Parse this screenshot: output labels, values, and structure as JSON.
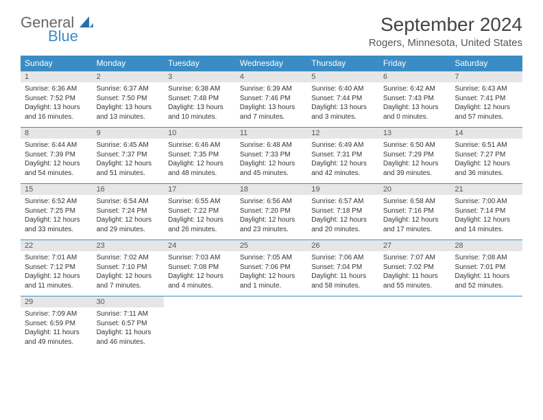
{
  "logo": {
    "text1": "General",
    "text2": "Blue"
  },
  "title": "September 2024",
  "location": "Rogers, Minnesota, United States",
  "colors": {
    "header_bg": "#3b8cc4",
    "header_text": "#ffffff",
    "daynum_bg": "#e6e6e6",
    "row_border": "#3b8cc4",
    "body_text": "#333333",
    "logo_blue": "#3b8cc4",
    "logo_gray": "#666666"
  },
  "day_headers": [
    "Sunday",
    "Monday",
    "Tuesday",
    "Wednesday",
    "Thursday",
    "Friday",
    "Saturday"
  ],
  "weeks": [
    [
      {
        "n": "1",
        "sr": "Sunrise: 6:36 AM",
        "ss": "Sunset: 7:52 PM",
        "d1": "Daylight: 13 hours",
        "d2": "and 16 minutes."
      },
      {
        "n": "2",
        "sr": "Sunrise: 6:37 AM",
        "ss": "Sunset: 7:50 PM",
        "d1": "Daylight: 13 hours",
        "d2": "and 13 minutes."
      },
      {
        "n": "3",
        "sr": "Sunrise: 6:38 AM",
        "ss": "Sunset: 7:48 PM",
        "d1": "Daylight: 13 hours",
        "d2": "and 10 minutes."
      },
      {
        "n": "4",
        "sr": "Sunrise: 6:39 AM",
        "ss": "Sunset: 7:46 PM",
        "d1": "Daylight: 13 hours",
        "d2": "and 7 minutes."
      },
      {
        "n": "5",
        "sr": "Sunrise: 6:40 AM",
        "ss": "Sunset: 7:44 PM",
        "d1": "Daylight: 13 hours",
        "d2": "and 3 minutes."
      },
      {
        "n": "6",
        "sr": "Sunrise: 6:42 AM",
        "ss": "Sunset: 7:43 PM",
        "d1": "Daylight: 13 hours",
        "d2": "and 0 minutes."
      },
      {
        "n": "7",
        "sr": "Sunrise: 6:43 AM",
        "ss": "Sunset: 7:41 PM",
        "d1": "Daylight: 12 hours",
        "d2": "and 57 minutes."
      }
    ],
    [
      {
        "n": "8",
        "sr": "Sunrise: 6:44 AM",
        "ss": "Sunset: 7:39 PM",
        "d1": "Daylight: 12 hours",
        "d2": "and 54 minutes."
      },
      {
        "n": "9",
        "sr": "Sunrise: 6:45 AM",
        "ss": "Sunset: 7:37 PM",
        "d1": "Daylight: 12 hours",
        "d2": "and 51 minutes."
      },
      {
        "n": "10",
        "sr": "Sunrise: 6:46 AM",
        "ss": "Sunset: 7:35 PM",
        "d1": "Daylight: 12 hours",
        "d2": "and 48 minutes."
      },
      {
        "n": "11",
        "sr": "Sunrise: 6:48 AM",
        "ss": "Sunset: 7:33 PM",
        "d1": "Daylight: 12 hours",
        "d2": "and 45 minutes."
      },
      {
        "n": "12",
        "sr": "Sunrise: 6:49 AM",
        "ss": "Sunset: 7:31 PM",
        "d1": "Daylight: 12 hours",
        "d2": "and 42 minutes."
      },
      {
        "n": "13",
        "sr": "Sunrise: 6:50 AM",
        "ss": "Sunset: 7:29 PM",
        "d1": "Daylight: 12 hours",
        "d2": "and 39 minutes."
      },
      {
        "n": "14",
        "sr": "Sunrise: 6:51 AM",
        "ss": "Sunset: 7:27 PM",
        "d1": "Daylight: 12 hours",
        "d2": "and 36 minutes."
      }
    ],
    [
      {
        "n": "15",
        "sr": "Sunrise: 6:52 AM",
        "ss": "Sunset: 7:25 PM",
        "d1": "Daylight: 12 hours",
        "d2": "and 33 minutes."
      },
      {
        "n": "16",
        "sr": "Sunrise: 6:54 AM",
        "ss": "Sunset: 7:24 PM",
        "d1": "Daylight: 12 hours",
        "d2": "and 29 minutes."
      },
      {
        "n": "17",
        "sr": "Sunrise: 6:55 AM",
        "ss": "Sunset: 7:22 PM",
        "d1": "Daylight: 12 hours",
        "d2": "and 26 minutes."
      },
      {
        "n": "18",
        "sr": "Sunrise: 6:56 AM",
        "ss": "Sunset: 7:20 PM",
        "d1": "Daylight: 12 hours",
        "d2": "and 23 minutes."
      },
      {
        "n": "19",
        "sr": "Sunrise: 6:57 AM",
        "ss": "Sunset: 7:18 PM",
        "d1": "Daylight: 12 hours",
        "d2": "and 20 minutes."
      },
      {
        "n": "20",
        "sr": "Sunrise: 6:58 AM",
        "ss": "Sunset: 7:16 PM",
        "d1": "Daylight: 12 hours",
        "d2": "and 17 minutes."
      },
      {
        "n": "21",
        "sr": "Sunrise: 7:00 AM",
        "ss": "Sunset: 7:14 PM",
        "d1": "Daylight: 12 hours",
        "d2": "and 14 minutes."
      }
    ],
    [
      {
        "n": "22",
        "sr": "Sunrise: 7:01 AM",
        "ss": "Sunset: 7:12 PM",
        "d1": "Daylight: 12 hours",
        "d2": "and 11 minutes."
      },
      {
        "n": "23",
        "sr": "Sunrise: 7:02 AM",
        "ss": "Sunset: 7:10 PM",
        "d1": "Daylight: 12 hours",
        "d2": "and 7 minutes."
      },
      {
        "n": "24",
        "sr": "Sunrise: 7:03 AM",
        "ss": "Sunset: 7:08 PM",
        "d1": "Daylight: 12 hours",
        "d2": "and 4 minutes."
      },
      {
        "n": "25",
        "sr": "Sunrise: 7:05 AM",
        "ss": "Sunset: 7:06 PM",
        "d1": "Daylight: 12 hours",
        "d2": "and 1 minute."
      },
      {
        "n": "26",
        "sr": "Sunrise: 7:06 AM",
        "ss": "Sunset: 7:04 PM",
        "d1": "Daylight: 11 hours",
        "d2": "and 58 minutes."
      },
      {
        "n": "27",
        "sr": "Sunrise: 7:07 AM",
        "ss": "Sunset: 7:02 PM",
        "d1": "Daylight: 11 hours",
        "d2": "and 55 minutes."
      },
      {
        "n": "28",
        "sr": "Sunrise: 7:08 AM",
        "ss": "Sunset: 7:01 PM",
        "d1": "Daylight: 11 hours",
        "d2": "and 52 minutes."
      }
    ],
    [
      {
        "n": "29",
        "sr": "Sunrise: 7:09 AM",
        "ss": "Sunset: 6:59 PM",
        "d1": "Daylight: 11 hours",
        "d2": "and 49 minutes."
      },
      {
        "n": "30",
        "sr": "Sunrise: 7:11 AM",
        "ss": "Sunset: 6:57 PM",
        "d1": "Daylight: 11 hours",
        "d2": "and 46 minutes."
      },
      null,
      null,
      null,
      null,
      null
    ]
  ]
}
